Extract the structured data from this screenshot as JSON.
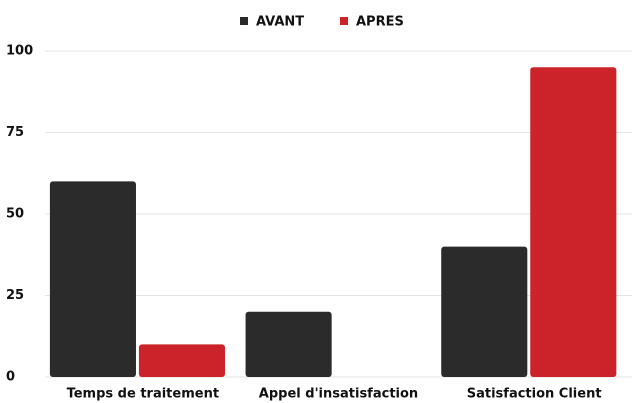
{
  "chart_data": {
    "type": "bar",
    "categories": [
      "Temps de traitement",
      "Appel d'insatisfaction",
      "Satisfaction Client"
    ],
    "series": [
      {
        "name": "AVANT",
        "color": "#2b2b2b",
        "values": [
          60,
          20,
          40
        ]
      },
      {
        "name": "APRES",
        "color": "#cc2229",
        "values": [
          10,
          0,
          95
        ]
      }
    ],
    "ylim": [
      0,
      100
    ],
    "yticks": [
      0,
      25,
      50,
      75,
      100
    ],
    "grid": true,
    "legend": "top"
  }
}
